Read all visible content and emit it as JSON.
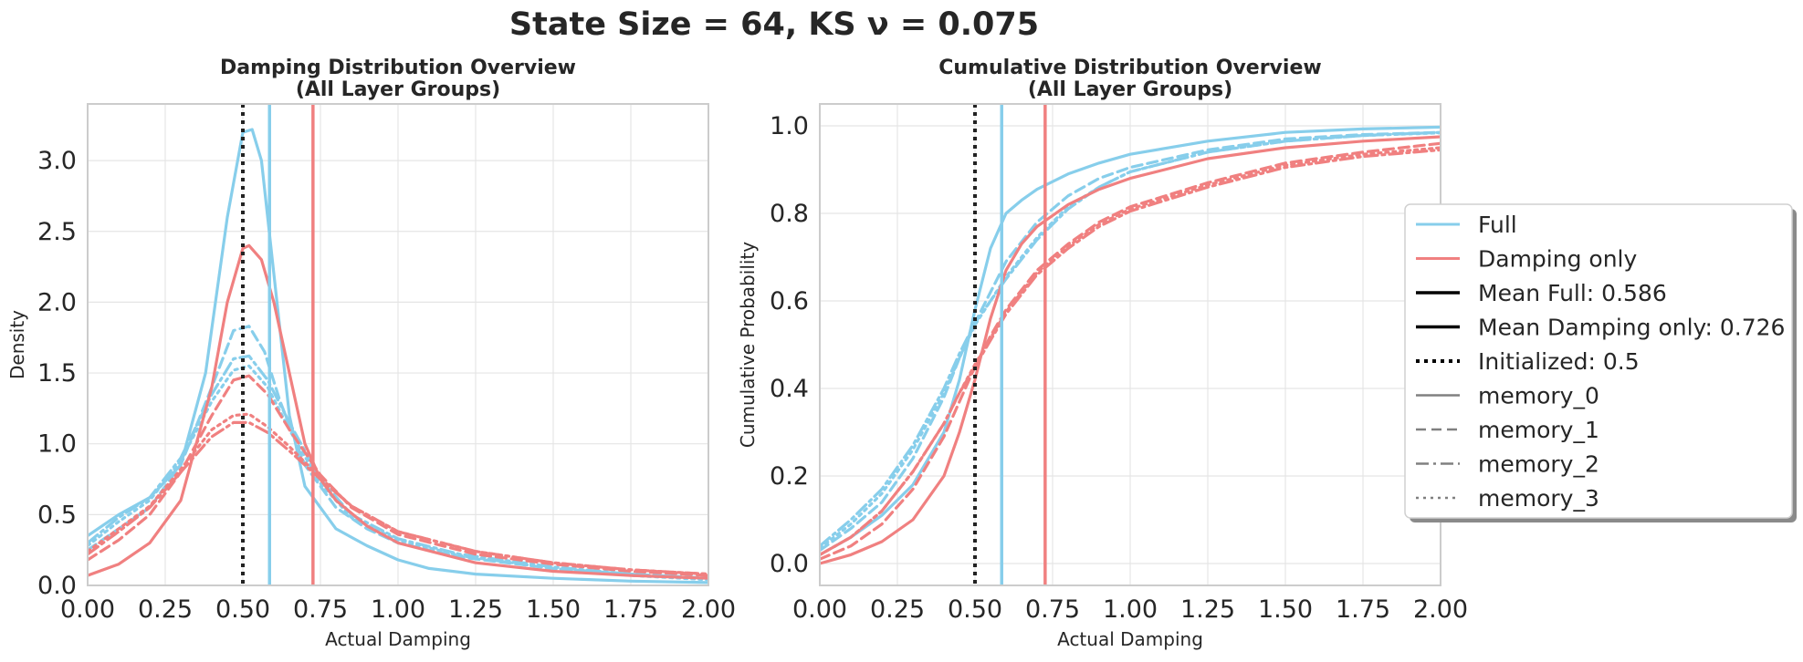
{
  "figure": {
    "suptitle": "State Size = 64, KS ν = 0.075"
  },
  "colors": {
    "full": "#87CEEB",
    "damping_only": "#F08080",
    "init": "#222222",
    "grid": "#e5e5e5",
    "spine": "#cccccc"
  },
  "legend": {
    "placement": "right",
    "entries": [
      {
        "label": "Full",
        "color": "#87CEEB",
        "style": "solid",
        "width": 3
      },
      {
        "label": "Damping only",
        "color": "#F08080",
        "style": "solid",
        "width": 3
      },
      {
        "label": "Mean Full: 0.586",
        "color": "#000000",
        "style": "solid",
        "width": 3.5
      },
      {
        "label": "Mean Damping only: 0.726",
        "color": "#000000",
        "style": "solid",
        "width": 3.5
      },
      {
        "label": "Initialized: 0.5",
        "color": "#000000",
        "style": "dotted",
        "width": 4
      },
      {
        "label": "memory_0",
        "color": "#808080",
        "style": "solid",
        "width": 2.5
      },
      {
        "label": "memory_1",
        "color": "#808080",
        "style": "dashed",
        "width": 2.5
      },
      {
        "label": "memory_2",
        "color": "#808080",
        "style": "dashdot",
        "width": 2.5
      },
      {
        "label": "memory_3",
        "color": "#808080",
        "style": "dotted",
        "width": 2.5
      }
    ]
  },
  "chart_data": [
    {
      "type": "line",
      "title": "Damping Distribution Overview\n(All Layer Groups)",
      "xlabel": "Actual Damping",
      "ylabel": "Density",
      "xlim": [
        0,
        2
      ],
      "ylim": [
        0,
        3.4
      ],
      "xticks": [
        "0.00",
        "0.25",
        "0.50",
        "0.75",
        "1.00",
        "1.25",
        "1.50",
        "1.75",
        "2.00"
      ],
      "xtick_values": [
        0,
        0.25,
        0.5,
        0.75,
        1.0,
        1.25,
        1.5,
        1.75,
        2.0
      ],
      "yticks": [
        "0.0",
        "0.5",
        "1.0",
        "1.5",
        "2.0",
        "2.5",
        "3.0"
      ],
      "ytick_values": [
        0,
        0.5,
        1.0,
        1.5,
        2.0,
        2.5,
        3.0
      ],
      "grid": true,
      "vlines": [
        {
          "x": 0.586,
          "label": "Mean Full: 0.586",
          "color": "#87CEEB",
          "style": "solid"
        },
        {
          "x": 0.726,
          "label": "Mean Damping only: 0.726",
          "color": "#F08080",
          "style": "solid"
        },
        {
          "x": 0.5,
          "label": "Initialized: 0.5",
          "color": "#222222",
          "style": "dotted"
        }
      ],
      "series": [
        {
          "group": "Full",
          "memory": "memory_0",
          "style": "solid",
          "color": "#87CEEB",
          "x": [
            0,
            0.1,
            0.2,
            0.3,
            0.38,
            0.45,
            0.5,
            0.53,
            0.56,
            0.6,
            0.65,
            0.7,
            0.8,
            0.9,
            1.0,
            1.1,
            1.25,
            1.5,
            1.75,
            2.0
          ],
          "y": [
            0.35,
            0.5,
            0.62,
            0.85,
            1.5,
            2.6,
            3.2,
            3.22,
            3.0,
            2.2,
            1.2,
            0.7,
            0.4,
            0.28,
            0.18,
            0.12,
            0.08,
            0.05,
            0.03,
            0.02
          ]
        },
        {
          "group": "Full",
          "memory": "memory_1",
          "style": "dashed",
          "color": "#87CEEB",
          "x": [
            0,
            0.1,
            0.2,
            0.3,
            0.4,
            0.47,
            0.52,
            0.57,
            0.62,
            0.7,
            0.8,
            0.9,
            1.0,
            1.2,
            1.5,
            1.75,
            2.0
          ],
          "y": [
            0.25,
            0.4,
            0.55,
            0.85,
            1.4,
            1.8,
            1.83,
            1.65,
            1.3,
            0.85,
            0.55,
            0.4,
            0.3,
            0.2,
            0.12,
            0.08,
            0.05
          ]
        },
        {
          "group": "Full",
          "memory": "memory_2",
          "style": "dashdot",
          "color": "#87CEEB",
          "x": [
            0,
            0.1,
            0.2,
            0.3,
            0.4,
            0.47,
            0.52,
            0.58,
            0.65,
            0.75,
            0.85,
            1.0,
            1.2,
            1.5,
            1.75,
            2.0
          ],
          "y": [
            0.3,
            0.48,
            0.62,
            0.9,
            1.35,
            1.6,
            1.62,
            1.45,
            1.15,
            0.75,
            0.5,
            0.33,
            0.22,
            0.13,
            0.08,
            0.05
          ]
        },
        {
          "group": "Full",
          "memory": "memory_3",
          "style": "dotted",
          "color": "#87CEEB",
          "x": [
            0,
            0.1,
            0.2,
            0.3,
            0.4,
            0.47,
            0.52,
            0.58,
            0.65,
            0.75,
            0.85,
            1.0,
            1.2,
            1.5,
            1.75,
            2.0
          ],
          "y": [
            0.28,
            0.45,
            0.6,
            0.88,
            1.3,
            1.52,
            1.55,
            1.4,
            1.1,
            0.72,
            0.48,
            0.32,
            0.21,
            0.12,
            0.07,
            0.04
          ]
        },
        {
          "group": "Damping only",
          "memory": "memory_0",
          "style": "solid",
          "color": "#F08080",
          "x": [
            0,
            0.1,
            0.2,
            0.3,
            0.4,
            0.45,
            0.5,
            0.52,
            0.56,
            0.6,
            0.65,
            0.7,
            0.75,
            0.8,
            0.9,
            1.0,
            1.25,
            1.5,
            1.75,
            2.0
          ],
          "y": [
            0.07,
            0.15,
            0.3,
            0.6,
            1.4,
            2.0,
            2.38,
            2.4,
            2.3,
            2.0,
            1.5,
            1.0,
            0.75,
            0.6,
            0.42,
            0.3,
            0.16,
            0.1,
            0.07,
            0.05
          ]
        },
        {
          "group": "Damping only",
          "memory": "memory_1",
          "style": "dashed",
          "color": "#F08080",
          "x": [
            0,
            0.1,
            0.2,
            0.3,
            0.4,
            0.47,
            0.52,
            0.58,
            0.65,
            0.75,
            0.85,
            1.0,
            1.25,
            1.5,
            1.75,
            2.0
          ],
          "y": [
            0.18,
            0.32,
            0.5,
            0.8,
            1.2,
            1.45,
            1.48,
            1.35,
            1.1,
            0.78,
            0.55,
            0.36,
            0.22,
            0.15,
            0.1,
            0.07
          ]
        },
        {
          "group": "Damping only",
          "memory": "memory_2",
          "style": "dashdot",
          "color": "#F08080",
          "x": [
            0,
            0.1,
            0.2,
            0.3,
            0.4,
            0.47,
            0.52,
            0.58,
            0.65,
            0.75,
            0.85,
            1.0,
            1.25,
            1.5,
            1.75,
            2.0
          ],
          "y": [
            0.22,
            0.38,
            0.55,
            0.8,
            1.05,
            1.15,
            1.15,
            1.08,
            0.95,
            0.75,
            0.56,
            0.38,
            0.24,
            0.16,
            0.11,
            0.08
          ]
        },
        {
          "group": "Damping only",
          "memory": "memory_3",
          "style": "dotted",
          "color": "#F08080",
          "x": [
            0,
            0.1,
            0.2,
            0.3,
            0.4,
            0.47,
            0.52,
            0.58,
            0.65,
            0.75,
            0.85,
            1.0,
            1.25,
            1.5,
            1.75,
            2.0
          ],
          "y": [
            0.24,
            0.4,
            0.56,
            0.82,
            1.1,
            1.2,
            1.21,
            1.12,
            0.98,
            0.76,
            0.56,
            0.38,
            0.24,
            0.16,
            0.11,
            0.08
          ]
        }
      ]
    },
    {
      "type": "line",
      "title": "Cumulative Distribution Overview\n(All Layer Groups)",
      "xlabel": "Actual Damping",
      "ylabel": "Cumulative Probability",
      "xlim": [
        0,
        2
      ],
      "ylim": [
        -0.05,
        1.05
      ],
      "xticks": [
        "0.00",
        "0.25",
        "0.50",
        "0.75",
        "1.00",
        "1.25",
        "1.50",
        "1.75",
        "2.00"
      ],
      "xtick_values": [
        0,
        0.25,
        0.5,
        0.75,
        1.0,
        1.25,
        1.5,
        1.75,
        2.0
      ],
      "yticks": [
        "0.0",
        "0.2",
        "0.4",
        "0.6",
        "0.8",
        "1.0"
      ],
      "ytick_values": [
        0,
        0.2,
        0.4,
        0.6,
        0.8,
        1.0
      ],
      "grid": true,
      "vlines": [
        {
          "x": 0.586,
          "label": "Mean Full: 0.586",
          "color": "#87CEEB",
          "style": "solid"
        },
        {
          "x": 0.726,
          "label": "Mean Damping only: 0.726",
          "color": "#F08080",
          "style": "solid"
        },
        {
          "x": 0.5,
          "label": "Initialized: 0.5",
          "color": "#222222",
          "style": "dotted"
        }
      ],
      "series": [
        {
          "group": "Full",
          "memory": "memory_0",
          "style": "solid",
          "color": "#87CEEB",
          "x": [
            0,
            0.1,
            0.2,
            0.3,
            0.4,
            0.45,
            0.5,
            0.55,
            0.6,
            0.65,
            0.7,
            0.8,
            0.9,
            1.0,
            1.25,
            1.5,
            1.75,
            2.0
          ],
          "y": [
            0.02,
            0.06,
            0.11,
            0.18,
            0.3,
            0.42,
            0.58,
            0.72,
            0.8,
            0.83,
            0.855,
            0.89,
            0.915,
            0.935,
            0.965,
            0.985,
            0.993,
            0.997
          ]
        },
        {
          "group": "Full",
          "memory": "memory_1",
          "style": "dashed",
          "color": "#87CEEB",
          "x": [
            0,
            0.1,
            0.2,
            0.3,
            0.4,
            0.45,
            0.5,
            0.55,
            0.6,
            0.7,
            0.8,
            0.9,
            1.0,
            1.25,
            1.5,
            1.75,
            2.0
          ],
          "y": [
            0.03,
            0.08,
            0.14,
            0.24,
            0.38,
            0.47,
            0.55,
            0.62,
            0.69,
            0.78,
            0.84,
            0.88,
            0.905,
            0.945,
            0.97,
            0.98,
            0.985
          ]
        },
        {
          "group": "Full",
          "memory": "memory_2",
          "style": "dashdot",
          "color": "#87CEEB",
          "x": [
            0,
            0.1,
            0.2,
            0.3,
            0.4,
            0.45,
            0.5,
            0.55,
            0.6,
            0.7,
            0.8,
            0.9,
            1.0,
            1.25,
            1.5,
            1.75,
            2.0
          ],
          "y": [
            0.04,
            0.1,
            0.17,
            0.27,
            0.4,
            0.48,
            0.55,
            0.6,
            0.65,
            0.74,
            0.81,
            0.86,
            0.895,
            0.94,
            0.965,
            0.978,
            0.985
          ]
        },
        {
          "group": "Full",
          "memory": "memory_3",
          "style": "dotted",
          "color": "#87CEEB",
          "x": [
            0,
            0.1,
            0.2,
            0.3,
            0.4,
            0.45,
            0.5,
            0.55,
            0.6,
            0.7,
            0.8,
            0.9,
            1.0,
            1.25,
            1.5,
            1.75,
            2.0
          ],
          "y": [
            0.035,
            0.09,
            0.16,
            0.26,
            0.39,
            0.47,
            0.545,
            0.6,
            0.655,
            0.745,
            0.815,
            0.86,
            0.895,
            0.94,
            0.965,
            0.978,
            0.984
          ]
        },
        {
          "group": "Damping only",
          "memory": "memory_0",
          "style": "solid",
          "color": "#F08080",
          "x": [
            0,
            0.1,
            0.2,
            0.3,
            0.4,
            0.45,
            0.5,
            0.55,
            0.6,
            0.65,
            0.7,
            0.8,
            0.9,
            1.0,
            1.25,
            1.5,
            1.75,
            2.0
          ],
          "y": [
            0.0,
            0.02,
            0.05,
            0.1,
            0.2,
            0.3,
            0.42,
            0.56,
            0.67,
            0.73,
            0.77,
            0.82,
            0.855,
            0.88,
            0.925,
            0.95,
            0.965,
            0.975
          ]
        },
        {
          "group": "Damping only",
          "memory": "memory_1",
          "style": "dashed",
          "color": "#F08080",
          "x": [
            0,
            0.1,
            0.2,
            0.3,
            0.4,
            0.45,
            0.5,
            0.55,
            0.6,
            0.7,
            0.8,
            0.9,
            1.0,
            1.25,
            1.5,
            1.75,
            2.0
          ],
          "y": [
            0.01,
            0.04,
            0.09,
            0.17,
            0.29,
            0.37,
            0.45,
            0.52,
            0.58,
            0.67,
            0.73,
            0.78,
            0.815,
            0.87,
            0.915,
            0.94,
            0.96
          ]
        },
        {
          "group": "Damping only",
          "memory": "memory_2",
          "style": "dashdot",
          "color": "#F08080",
          "x": [
            0,
            0.1,
            0.2,
            0.3,
            0.4,
            0.45,
            0.5,
            0.55,
            0.6,
            0.7,
            0.8,
            0.9,
            1.0,
            1.25,
            1.5,
            1.75,
            2.0
          ],
          "y": [
            0.02,
            0.06,
            0.12,
            0.21,
            0.32,
            0.39,
            0.45,
            0.51,
            0.57,
            0.66,
            0.72,
            0.77,
            0.805,
            0.86,
            0.905,
            0.93,
            0.945
          ]
        },
        {
          "group": "Damping only",
          "memory": "memory_3",
          "style": "dotted",
          "color": "#F08080",
          "x": [
            0,
            0.1,
            0.2,
            0.3,
            0.4,
            0.45,
            0.5,
            0.55,
            0.6,
            0.7,
            0.8,
            0.9,
            1.0,
            1.25,
            1.5,
            1.75,
            2.0
          ],
          "y": [
            0.02,
            0.06,
            0.12,
            0.21,
            0.32,
            0.39,
            0.455,
            0.515,
            0.575,
            0.665,
            0.725,
            0.775,
            0.81,
            0.865,
            0.91,
            0.935,
            0.95
          ]
        }
      ]
    }
  ]
}
